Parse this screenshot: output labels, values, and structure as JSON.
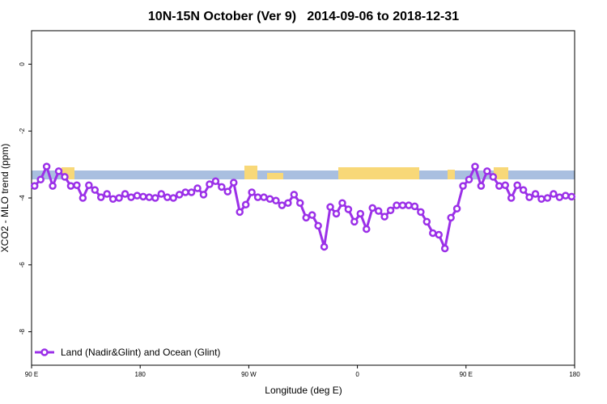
{
  "chart_data": {
    "type": "line",
    "title": "10N-15N October (Ver 9)   2014-09-06 to 2018-12-31",
    "xlabel": "Longitude (deg E)",
    "ylabel": "XCO2 - MLO trend (ppm)",
    "xlim": [
      90,
      540
    ],
    "ylim": [
      -9,
      1
    ],
    "xticks": [
      {
        "value": 90,
        "label": "90 E"
      },
      {
        "value": 180,
        "label": "180"
      },
      {
        "value": 270,
        "label": "90 W"
      },
      {
        "value": 360,
        "label": "0"
      },
      {
        "value": 450,
        "label": "90 E"
      },
      {
        "value": 540,
        "label": "180"
      }
    ],
    "yticks": [
      0,
      -2,
      -4,
      -6,
      -8
    ],
    "legend": "bottom-left",
    "x": [
      92.5,
      97.5,
      102.5,
      107.5,
      112.5,
      117.5,
      122.5,
      127.5,
      132.5,
      137.5,
      142.5,
      147.5,
      152.5,
      157.5,
      162.5,
      167.5,
      172.5,
      177.5,
      182.5,
      187.5,
      192.5,
      197.5,
      202.5,
      207.5,
      212.5,
      217.5,
      222.5,
      227.5,
      232.5,
      237.5,
      242.5,
      247.5,
      252.5,
      257.5,
      262.5,
      267.5,
      272.5,
      277.5,
      282.5,
      287.5,
      292.5,
      297.5,
      302.5,
      307.5,
      312.5,
      317.5,
      322.5,
      327.5,
      332.5,
      337.5,
      342.5,
      347.5,
      352.5,
      357.5,
      362.5,
      367.5,
      372.5,
      377.5,
      382.5,
      387.5,
      392.5,
      397.5,
      402.5,
      407.5,
      412.5,
      417.5,
      422.5,
      427.5,
      432.5,
      437.5,
      442.5,
      447.5,
      452.5,
      457.5,
      462.5,
      467.5,
      472.5,
      477.5,
      482.5,
      487.5,
      492.5,
      497.5,
      502.5,
      507.5,
      512.5,
      517.5,
      522.5,
      527.5,
      532.5,
      537.5
    ],
    "series": [
      {
        "name": "Land (Nadir&Glint) and Ocean (Glint)",
        "color": "#9b30e8",
        "values": [
          -3.64,
          -3.45,
          -3.06,
          -3.64,
          -3.2,
          -3.37,
          -3.64,
          -3.62,
          -4.0,
          -3.62,
          -3.76,
          -3.98,
          -3.88,
          -4.03,
          -4.0,
          -3.88,
          -3.98,
          -3.93,
          -3.96,
          -3.98,
          -4.0,
          -3.88,
          -3.98,
          -4.0,
          -3.9,
          -3.83,
          -3.83,
          -3.71,
          -3.9,
          -3.59,
          -3.5,
          -3.67,
          -3.81,
          -3.54,
          -4.42,
          -4.2,
          -3.83,
          -3.98,
          -3.98,
          -4.03,
          -4.08,
          -4.22,
          -4.15,
          -3.9,
          -4.15,
          -4.59,
          -4.51,
          -4.83,
          -5.46,
          -4.27,
          -4.47,
          -4.15,
          -4.34,
          -4.71,
          -4.47,
          -4.93,
          -4.3,
          -4.39,
          -4.56,
          -4.37,
          -4.22,
          -4.22,
          -4.22,
          -4.25,
          -4.42,
          -4.71,
          -5.05,
          -5.1,
          -5.51,
          -4.59,
          -4.32,
          -3.64,
          -3.45,
          -3.06,
          -3.64,
          -3.2,
          -3.37,
          -3.64,
          -3.62,
          -4.0,
          -3.62,
          -3.76,
          -3.98,
          -3.88,
          -4.03,
          -4.0,
          -3.88,
          -3.98,
          -3.93,
          -3.96
        ]
      }
    ]
  }
}
